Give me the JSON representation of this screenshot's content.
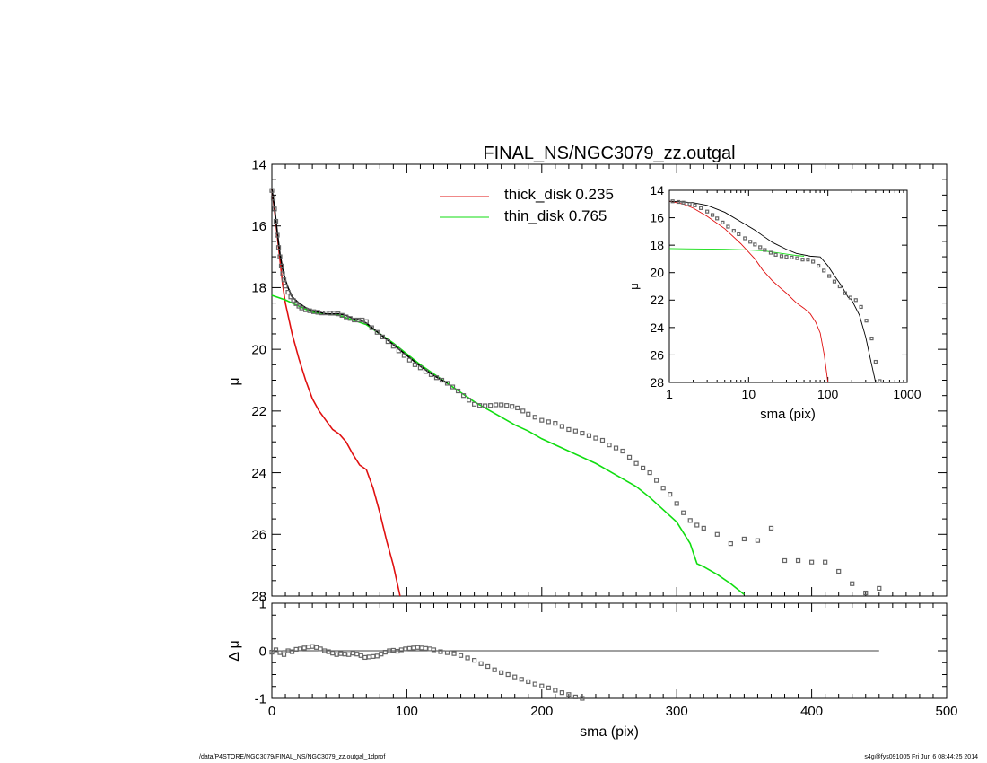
{
  "colors": {
    "thick": "#e01010",
    "thin": "#10dd10",
    "data": "#666666",
    "model": "#000000"
  },
  "footer": {
    "left": "/data/P4STORE/NGC3079/FINAL_NS/NGC3079_zz.outgal_1dprof",
    "right": "s4g@fys091005  Fri Jun  6 08:44:25 2014"
  },
  "chart_data": [
    {
      "type": "line",
      "title": "FINAL_NS/NGC3079_zz.outgal",
      "xlabel": "",
      "ylabel": "μ",
      "xlim": [
        0,
        500
      ],
      "ylim": [
        28,
        14
      ],
      "yticks": [
        14,
        16,
        18,
        20,
        22,
        24,
        26,
        28
      ],
      "legend": [
        {
          "label": "thick_disk  0.235",
          "color": "#e01010"
        },
        {
          "label": "thin_disk  0.765",
          "color": "#10dd10"
        }
      ],
      "series": [
        {
          "name": "thick_disk  0.235",
          "style": "line",
          "x": [
            0,
            2,
            4,
            6,
            8,
            10,
            15,
            20,
            25,
            30,
            35,
            40,
            45,
            50,
            55,
            60,
            65,
            70,
            75,
            80,
            85,
            90,
            95
          ],
          "y": [
            14.8,
            15.5,
            16.3,
            17.1,
            17.9,
            18.5,
            19.5,
            20.3,
            21.0,
            21.6,
            22.0,
            22.3,
            22.6,
            22.75,
            23.0,
            23.4,
            23.75,
            23.9,
            24.5,
            25.3,
            26.2,
            27.0,
            28.0
          ]
        },
        {
          "name": "thin_disk  0.765",
          "style": "line",
          "x": [
            0,
            10,
            20,
            30,
            40,
            50,
            60,
            70,
            80,
            90,
            100,
            110,
            120,
            130,
            140,
            150,
            160,
            170,
            180,
            190,
            200,
            210,
            220,
            230,
            240,
            250,
            260,
            270,
            280,
            290,
            300,
            310,
            315,
            320,
            330,
            340,
            350
          ],
          "y": [
            18.25,
            18.4,
            18.6,
            18.8,
            18.85,
            18.9,
            19.05,
            19.2,
            19.5,
            19.8,
            20.15,
            20.5,
            20.8,
            21.1,
            21.4,
            21.7,
            21.95,
            22.2,
            22.45,
            22.65,
            22.9,
            23.1,
            23.3,
            23.5,
            23.7,
            23.95,
            24.2,
            24.45,
            24.8,
            25.2,
            25.6,
            26.3,
            26.95,
            27.05,
            27.3,
            27.6,
            27.95
          ]
        },
        {
          "name": "",
          "style": "line",
          "x": [
            0,
            2,
            4,
            6,
            8,
            10,
            12,
            15,
            20,
            25,
            30,
            35,
            40,
            45,
            50,
            55,
            60,
            65,
            70,
            80,
            90,
            100,
            110,
            120,
            130
          ],
          "y": [
            14.8,
            15.4,
            16.2,
            16.9,
            17.4,
            17.75,
            18.0,
            18.3,
            18.5,
            18.65,
            18.75,
            18.8,
            18.85,
            18.85,
            18.85,
            18.9,
            19.0,
            19.05,
            19.15,
            19.5,
            19.85,
            20.2,
            20.55,
            20.85,
            21.1
          ]
        },
        {
          "name": "",
          "style": "points",
          "x": [
            0,
            1,
            2,
            3,
            4,
            5,
            6,
            7,
            8,
            9,
            10,
            12,
            14,
            16,
            18,
            20,
            22,
            25,
            28,
            31,
            34,
            37,
            40,
            43,
            46,
            49,
            52,
            55,
            58,
            61,
            64,
            67,
            70,
            74,
            78,
            82,
            86,
            90,
            94,
            98,
            102,
            106,
            110,
            114,
            118,
            122,
            126,
            130,
            134,
            138,
            142,
            146,
            150,
            154,
            158,
            162,
            166,
            170,
            174,
            178,
            182,
            186,
            190,
            195,
            200,
            205,
            210,
            215,
            220,
            225,
            230,
            235,
            240,
            245,
            250,
            255,
            260,
            265,
            270,
            275,
            280,
            285,
            290,
            295,
            300,
            305,
            310,
            315,
            320,
            330,
            340,
            350,
            360,
            370,
            380,
            390,
            400,
            410,
            420,
            430,
            440,
            450
          ],
          "y": [
            14.85,
            15.1,
            15.45,
            15.85,
            16.3,
            16.7,
            17.0,
            17.3,
            17.55,
            17.75,
            17.95,
            18.15,
            18.3,
            18.42,
            18.52,
            18.6,
            18.66,
            18.72,
            18.75,
            18.78,
            18.8,
            18.82,
            18.82,
            18.83,
            18.83,
            18.85,
            18.9,
            18.95,
            19.0,
            19.05,
            19.05,
            19.05,
            19.1,
            19.3,
            19.45,
            19.6,
            19.75,
            19.9,
            20.05,
            20.2,
            20.35,
            20.5,
            20.6,
            20.72,
            20.82,
            20.92,
            21.0,
            21.1,
            21.22,
            21.35,
            21.5,
            21.65,
            21.78,
            21.82,
            21.83,
            21.82,
            21.8,
            21.8,
            21.82,
            21.85,
            21.9,
            22.0,
            22.1,
            22.2,
            22.3,
            22.35,
            22.4,
            22.5,
            22.6,
            22.65,
            22.72,
            22.8,
            22.88,
            22.95,
            23.1,
            23.2,
            23.3,
            23.5,
            23.7,
            23.85,
            24.0,
            24.25,
            24.5,
            24.7,
            25.0,
            25.3,
            25.55,
            25.7,
            25.8,
            26.0,
            26.3,
            26.15,
            26.2,
            25.8,
            26.85,
            26.85,
            26.9,
            26.9,
            27.2,
            27.6,
            27.9,
            27.75
          ]
        }
      ]
    },
    {
      "type": "line",
      "title": "",
      "xlabel": "sma (pix)",
      "ylabel": "Δ μ",
      "xlim": [
        0,
        500
      ],
      "ylim": [
        -1,
        1
      ],
      "xticks": [
        0,
        100,
        200,
        300,
        400,
        500
      ],
      "yticks": [
        -1,
        0,
        1
      ],
      "reference_line": {
        "y": 0,
        "x": [
          0,
          450
        ]
      },
      "series": [
        {
          "name": "",
          "style": "points",
          "x": [
            0,
            3,
            6,
            9,
            12,
            15,
            18,
            21,
            24,
            27,
            30,
            33,
            36,
            39,
            42,
            45,
            48,
            51,
            54,
            57,
            60,
            63,
            66,
            69,
            72,
            75,
            78,
            81,
            84,
            87,
            90,
            93,
            96,
            99,
            102,
            105,
            108,
            111,
            114,
            117,
            120,
            125,
            130,
            135,
            140,
            145,
            150,
            155,
            160,
            165,
            170,
            175,
            180,
            185,
            190,
            195,
            200,
            205,
            210,
            215,
            220,
            225,
            230
          ],
          "y": [
            -0.03,
            0.02,
            -0.04,
            -0.08,
            0.0,
            -0.02,
            0.03,
            0.04,
            0.06,
            0.08,
            0.09,
            0.07,
            0.04,
            0.0,
            -0.02,
            -0.05,
            -0.08,
            -0.06,
            -0.07,
            -0.08,
            -0.05,
            -0.07,
            -0.1,
            -0.14,
            -0.13,
            -0.12,
            -0.11,
            -0.07,
            -0.03,
            0.0,
            0.01,
            -0.01,
            0.02,
            0.04,
            0.05,
            0.06,
            0.07,
            0.06,
            0.05,
            0.04,
            0.02,
            -0.02,
            -0.04,
            -0.06,
            -0.1,
            -0.15,
            -0.2,
            -0.27,
            -0.33,
            -0.4,
            -0.46,
            -0.5,
            -0.55,
            -0.6,
            -0.65,
            -0.7,
            -0.74,
            -0.78,
            -0.83,
            -0.88,
            -0.92,
            -0.97,
            -1.0
          ]
        }
      ]
    },
    {
      "type": "line",
      "title": "",
      "xlabel": "sma (pix)",
      "ylabel": "μ",
      "xscale": "log",
      "xlim": [
        1,
        1000
      ],
      "ylim": [
        28,
        14
      ],
      "xticks": [
        1,
        10,
        100,
        1000
      ],
      "yticks": [
        14,
        16,
        18,
        20,
        22,
        24,
        26,
        28
      ],
      "series": [
        {
          "name": "",
          "style": "line",
          "x": [
            1,
            1.5,
            2,
            3,
            5,
            8,
            12,
            15,
            20,
            25,
            30,
            40,
            50,
            60,
            70,
            80,
            90,
            100
          ],
          "y": [
            14.8,
            15.0,
            15.3,
            15.9,
            16.8,
            17.9,
            19.0,
            19.8,
            20.6,
            21.1,
            21.5,
            22.2,
            22.6,
            23.0,
            23.6,
            24.4,
            26.0,
            28.0
          ]
        },
        {
          "name": "",
          "style": "line",
          "x": [
            1,
            5,
            10,
            15,
            20,
            30,
            40,
            50
          ],
          "y": [
            18.25,
            18.3,
            18.35,
            18.4,
            18.5,
            18.65,
            18.75,
            18.8
          ]
        },
        {
          "name": "",
          "style": "line",
          "x": [
            1,
            1.5,
            2,
            3,
            5,
            8,
            12,
            15,
            20,
            30,
            40,
            60,
            80,
            100,
            120,
            150,
            180,
            200,
            250,
            300,
            350,
            400
          ],
          "y": [
            14.8,
            14.85,
            14.9,
            15.1,
            15.6,
            16.3,
            16.9,
            17.3,
            17.8,
            18.3,
            18.6,
            18.8,
            18.85,
            19.5,
            20.2,
            21.0,
            21.8,
            22.0,
            23.1,
            24.7,
            26.5,
            28.0
          ]
        },
        {
          "name": "",
          "style": "points",
          "x": [
            1.1,
            1.3,
            1.5,
            1.8,
            2.1,
            2.5,
            3,
            3.5,
            4,
            4.7,
            5.5,
            6.5,
            7.5,
            9,
            10.5,
            12,
            14,
            16,
            19,
            22,
            26,
            30,
            35,
            41,
            48,
            56,
            65,
            76,
            89,
            104,
            121,
            141,
            165,
            193,
            225,
            262,
            306,
            357,
            400,
            450
          ],
          "y": [
            14.8,
            14.85,
            14.9,
            15.0,
            15.1,
            15.3,
            15.55,
            15.8,
            16.05,
            16.35,
            16.65,
            16.95,
            17.2,
            17.5,
            17.75,
            17.95,
            18.15,
            18.35,
            18.55,
            18.7,
            18.8,
            18.85,
            18.9,
            18.95,
            19.05,
            19.05,
            19.2,
            19.5,
            19.85,
            20.25,
            20.65,
            21.0,
            21.5,
            21.82,
            22.0,
            22.5,
            23.5,
            24.8,
            26.5,
            27.9
          ]
        }
      ]
    }
  ]
}
